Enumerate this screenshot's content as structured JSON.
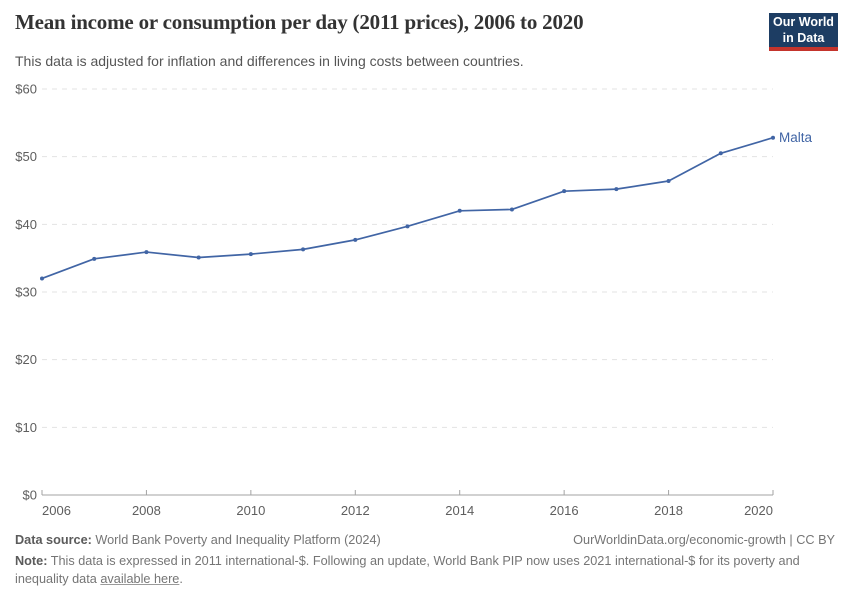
{
  "header": {
    "title": "Mean income or consumption per day (2011 prices), 2006 to 2020",
    "subtitle": "This data is adjusted for inflation and differences in living costs between countries.",
    "logo": {
      "line1": "Our World",
      "line2": "in Data",
      "bg_color": "#1d3d63",
      "accent_color": "#c4342c"
    }
  },
  "chart_data": {
    "type": "line",
    "title": "Mean income or consumption per day (2011 prices), 2006 to 2020",
    "xlabel": "",
    "ylabel": "",
    "xlim": [
      2006,
      2020
    ],
    "ylim": [
      0,
      60
    ],
    "grid": "horizontal-dashed",
    "legend_position": "end-of-line-label",
    "x_ticks": [
      2006,
      2008,
      2010,
      2012,
      2014,
      2016,
      2018,
      2020
    ],
    "y_ticks": [
      0,
      10,
      20,
      30,
      40,
      50,
      60
    ],
    "y_tick_labels": [
      "$0",
      "$10",
      "$20",
      "$30",
      "$40",
      "$50",
      "$60"
    ],
    "series": [
      {
        "name": "Malta",
        "color": "#4165a5",
        "x": [
          2006,
          2007,
          2008,
          2009,
          2010,
          2011,
          2012,
          2013,
          2014,
          2015,
          2016,
          2017,
          2018,
          2019,
          2020
        ],
        "values": [
          32.0,
          34.9,
          35.9,
          35.1,
          35.6,
          36.3,
          37.7,
          39.7,
          42.0,
          42.2,
          44.9,
          45.2,
          46.4,
          50.5,
          52.8
        ]
      }
    ],
    "colors": {
      "gridline": "#e3e3e3",
      "axis": "#a3a3a3",
      "tick_label": "#5e5e5e"
    }
  },
  "footer": {
    "source_label": "Data source:",
    "source_text": " World Bank Poverty and Inequality Platform (2024)",
    "attribution": "OurWorldinData.org/economic-growth | CC BY",
    "note_label": "Note:",
    "note_text": " This data is expressed in 2011 international-$. Following an update, World Bank PIP now uses 2021 international-$ for its poverty and inequality data ",
    "note_link": "available here",
    "note_suffix": "."
  }
}
